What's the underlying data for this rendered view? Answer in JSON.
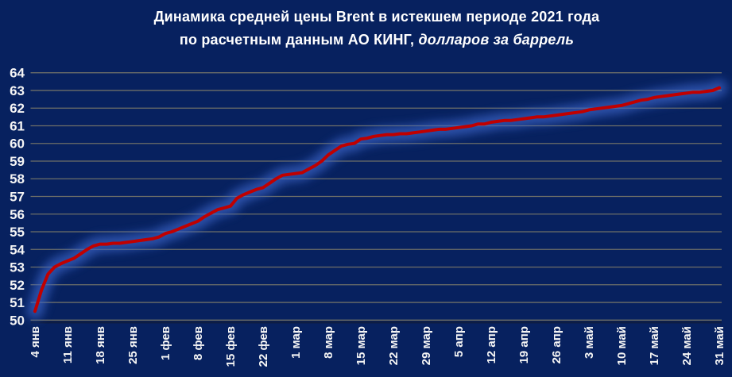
{
  "title": {
    "line1": "Динамика средней цены Brent в истекшем периоде 2021 года",
    "line2_regular": "по расчетным данным АО КИНГ,",
    "line2_italic": " долларов за баррель"
  },
  "chart_data": {
    "type": "line",
    "title": "Динамика средней цены Brent в истекшем периоде 2021 года по расчетным данным АО КИНГ, долларов за баррель",
    "xlabel": "",
    "ylabel": "",
    "ylim": [
      50,
      64
    ],
    "grid": "horizontal-only",
    "legend_position": "none",
    "y_ticks": [
      50,
      51,
      52,
      53,
      54,
      55,
      56,
      57,
      58,
      59,
      60,
      61,
      62,
      63,
      64
    ],
    "x_tick_labels": [
      "4 янв",
      "11 янв",
      "18 янв",
      "25 янв",
      "1 фев",
      "8 фев",
      "15 фев",
      "22 фев",
      "1 мар",
      "8 мар",
      "15 мар",
      "22 мар",
      "29 мар",
      "5 апр",
      "12 апр",
      "19 апр",
      "26 апр",
      "3 май",
      "10 май",
      "17 май",
      "24 май",
      "31 май"
    ],
    "points_per_tick_interval": 5,
    "series": [
      {
        "name": "Средняя цена Brent, долларов за баррель",
        "values": [
          50.5,
          51.7,
          52.6,
          53.0,
          53.2,
          53.35,
          53.5,
          53.75,
          54.0,
          54.2,
          54.3,
          54.3,
          54.35,
          54.35,
          54.4,
          54.45,
          54.5,
          54.55,
          54.6,
          54.7,
          54.9,
          55.0,
          55.15,
          55.3,
          55.45,
          55.6,
          55.85,
          56.05,
          56.25,
          56.35,
          56.45,
          56.9,
          57.1,
          57.25,
          57.4,
          57.5,
          57.75,
          58.0,
          58.2,
          58.25,
          58.3,
          58.35,
          58.55,
          58.75,
          59.0,
          59.35,
          59.6,
          59.85,
          59.95,
          60.0,
          60.25,
          60.3,
          60.4,
          60.45,
          60.5,
          60.5,
          60.55,
          60.55,
          60.6,
          60.65,
          60.7,
          60.75,
          60.8,
          60.8,
          60.85,
          60.9,
          60.95,
          61.0,
          61.1,
          61.1,
          61.2,
          61.25,
          61.3,
          61.3,
          61.35,
          61.4,
          61.45,
          61.5,
          61.5,
          61.55,
          61.6,
          61.65,
          61.7,
          61.75,
          61.8,
          61.9,
          61.95,
          62.0,
          62.05,
          62.1,
          62.15,
          62.25,
          62.35,
          62.45,
          62.5,
          62.6,
          62.65,
          62.7,
          62.75,
          62.8,
          62.85,
          62.9,
          62.9,
          62.95,
          63.0,
          63.15
        ]
      }
    ],
    "colors": {
      "background": "#07215f",
      "line": "#c00000",
      "line_glow": "#3b63c6",
      "gridline": "#6e6f68",
      "axis_line": "#0d1d44",
      "tick_text": "#f5f5f5"
    }
  }
}
